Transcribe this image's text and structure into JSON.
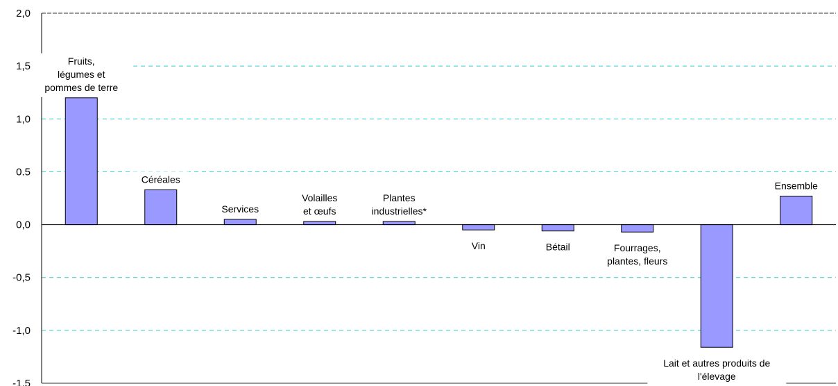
{
  "chart_data": {
    "type": "bar",
    "categories": [
      [
        "Fruits,",
        "légumes et",
        "pommes de terre"
      ],
      [
        "Céréales"
      ],
      [
        "Services"
      ],
      [
        "Volailles",
        "et œufs"
      ],
      [
        "Plantes",
        "industrielles*"
      ],
      [
        "Vin"
      ],
      [
        "Bétail"
      ],
      [
        "Fourrages,",
        "plantes, fleurs"
      ],
      [
        "Lait et autres produits de",
        "l'élevage"
      ],
      [
        "Ensemble"
      ]
    ],
    "values": [
      1.2,
      0.33,
      0.05,
      0.03,
      0.03,
      -0.05,
      -0.06,
      -0.07,
      -1.16,
      0.27
    ],
    "yticks": [
      "2,0",
      "1,5",
      "1,0",
      "0.5",
      "0,0",
      "-0,5",
      "-1,0",
      "-1,5"
    ],
    "ylim": [
      -1.5,
      2.0
    ],
    "grid": true,
    "colors": {
      "bar": "#9999ff",
      "grid": "#33cccc",
      "axis": "#000000"
    }
  }
}
